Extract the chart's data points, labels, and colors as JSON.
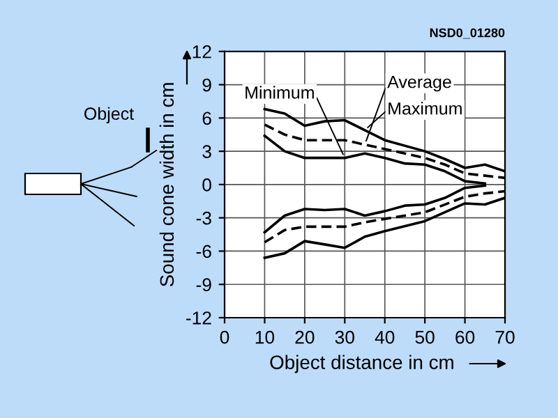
{
  "chart_data": {
    "type": "line",
    "xlabel": "Object distance in cm",
    "ylabel": "Sound cone width in cm",
    "annotations": [
      "NSD0_01280",
      "Object"
    ],
    "series": [
      {
        "name": "Maximum",
        "color": "#000000",
        "line_style": "solid",
        "x": [
          10,
          15,
          20,
          25,
          30,
          35,
          40,
          50,
          55,
          60,
          65,
          70
        ],
        "values": [
          6.8,
          6.4,
          5.3,
          5.7,
          5.8,
          4.9,
          4.0,
          3.0,
          2.3,
          1.5,
          1.8,
          1.2
        ]
      },
      {
        "name": "Average",
        "color": "#000000",
        "line_style": "dashed",
        "x": [
          10,
          15,
          20,
          30,
          35,
          40,
          50,
          55,
          60,
          65,
          70
        ],
        "values": [
          5.4,
          4.5,
          4.0,
          4.0,
          3.6,
          3.2,
          2.4,
          1.8,
          1.0,
          0.8,
          0.6
        ]
      },
      {
        "name": "Minimum",
        "color": "#000000",
        "line_style": "solid",
        "x": [
          10,
          15,
          20,
          25,
          30,
          35,
          40,
          45,
          50,
          55,
          60,
          65
        ],
        "values": [
          4.4,
          3.0,
          2.4,
          2.4,
          2.4,
          2.8,
          2.4,
          1.9,
          1.8,
          1.2,
          0.3,
          0.1
        ]
      },
      {
        "color": "#000000",
        "line_style": "solid",
        "x": [
          10,
          15,
          20,
          25,
          30,
          35,
          40,
          45,
          50,
          55,
          60,
          65
        ],
        "values": [
          -4.3,
          -2.8,
          -2.2,
          -2.3,
          -2.2,
          -2.8,
          -2.4,
          -1.9,
          -1.8,
          -1.2,
          -0.3,
          -0.1
        ]
      },
      {
        "color": "#000000",
        "line_style": "dashed",
        "x": [
          10,
          15,
          20,
          30,
          35,
          40,
          50,
          55,
          60,
          65,
          70
        ],
        "values": [
          -5.2,
          -4.1,
          -3.8,
          -3.8,
          -3.4,
          -3.1,
          -2.5,
          -1.8,
          -1.1,
          -0.8,
          -0.6
        ]
      },
      {
        "color": "#000000",
        "line_style": "solid",
        "x": [
          10,
          15,
          20,
          25,
          30,
          35,
          40,
          50,
          55,
          60,
          65,
          70
        ],
        "values": [
          -6.6,
          -6.2,
          -5.1,
          -5.4,
          -5.7,
          -4.7,
          -4.2,
          -3.3,
          -2.5,
          -1.7,
          -1.8,
          -1.2
        ]
      }
    ],
    "xlim": [
      0,
      70
    ],
    "xticks": [
      0,
      10,
      20,
      30,
      40,
      50,
      60,
      70
    ],
    "ylim": [
      -12,
      12
    ],
    "yticks": [
      -12,
      -9,
      -6,
      -3,
      0,
      3,
      6,
      9,
      12
    ],
    "grid": true
  }
}
